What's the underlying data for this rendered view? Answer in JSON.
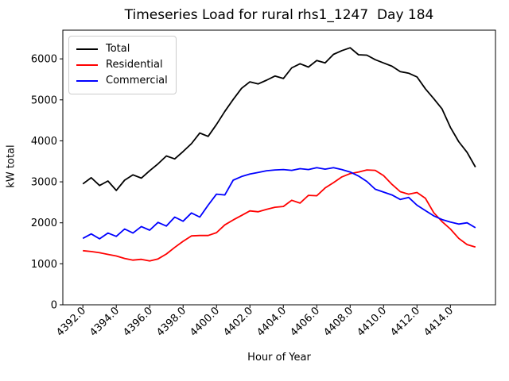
{
  "chart": {
    "title": "Timeseries Load for rural rhs1_1247  Day 184",
    "xlabel": "Hour of Year",
    "ylabel": "kW total"
  },
  "chart_data": {
    "type": "line",
    "title": "Timeseries Load for rural rhs1_1247  Day 184",
    "xlabel": "Hour of Year",
    "ylabel": "kW total",
    "grid": false,
    "legend_position": "upper left",
    "xlim": [
      4390.8,
      4416.7
    ],
    "ylim": [
      0,
      6700
    ],
    "xticks": [
      "4392.0",
      "4394.0",
      "4396.0",
      "4398.0",
      "4400.0",
      "4402.0",
      "4404.0",
      "4406.0",
      "4408.0",
      "4410.0",
      "4412.0",
      "4414.0"
    ],
    "yticks": [
      "0",
      "1000",
      "2000",
      "3000",
      "4000",
      "5000",
      "6000"
    ],
    "x": [
      4392.0,
      4392.5,
      4393.0,
      4393.5,
      4394.0,
      4394.5,
      4395.0,
      4395.5,
      4396.0,
      4396.5,
      4397.0,
      4397.5,
      4398.0,
      4398.5,
      4399.0,
      4399.5,
      4400.0,
      4400.5,
      4401.0,
      4401.5,
      4402.0,
      4402.5,
      4403.0,
      4403.5,
      4404.0,
      4404.5,
      4405.0,
      4405.5,
      4406.0,
      4406.5,
      4407.0,
      4407.5,
      4408.0,
      4408.5,
      4409.0,
      4409.5,
      4410.0,
      4410.5,
      4411.0,
      4411.5,
      4412.0,
      4412.5,
      4413.0,
      4413.5,
      4414.0,
      4414.5,
      4415.0,
      4415.5
    ],
    "series": [
      {
        "name": "Total",
        "color": "#000000",
        "values": [
          2950,
          3100,
          2910,
          3020,
          2790,
          3040,
          3170,
          3090,
          3270,
          3440,
          3630,
          3560,
          3740,
          3930,
          4190,
          4110,
          4400,
          4720,
          5010,
          5280,
          5440,
          5390,
          5480,
          5580,
          5520,
          5780,
          5880,
          5800,
          5960,
          5900,
          6110,
          6200,
          6270,
          6100,
          6090,
          5980,
          5900,
          5820,
          5690,
          5650,
          5560,
          5270,
          5030,
          4780,
          4330,
          3980,
          3720,
          3360
        ]
      },
      {
        "name": "Residential",
        "color": "#ff0000",
        "values": [
          1320,
          1300,
          1270,
          1230,
          1190,
          1130,
          1090,
          1110,
          1070,
          1120,
          1240,
          1400,
          1550,
          1680,
          1690,
          1690,
          1760,
          1950,
          2070,
          2180,
          2290,
          2270,
          2330,
          2380,
          2400,
          2550,
          2480,
          2670,
          2660,
          2850,
          2980,
          3120,
          3200,
          3240,
          3290,
          3280,
          3150,
          2940,
          2760,
          2700,
          2740,
          2600,
          2250,
          2030,
          1850,
          1620,
          1470,
          1410
        ]
      },
      {
        "name": "Commercial",
        "color": "#0000ff",
        "values": [
          1620,
          1730,
          1610,
          1750,
          1670,
          1850,
          1750,
          1910,
          1820,
          2010,
          1920,
          2140,
          2040,
          2240,
          2140,
          2430,
          2700,
          2680,
          3040,
          3130,
          3190,
          3230,
          3270,
          3290,
          3300,
          3280,
          3320,
          3300,
          3345,
          3310,
          3345,
          3300,
          3240,
          3140,
          3010,
          2820,
          2750,
          2680,
          2570,
          2620,
          2430,
          2300,
          2170,
          2080,
          2020,
          1970,
          2000,
          1880
        ]
      }
    ]
  }
}
